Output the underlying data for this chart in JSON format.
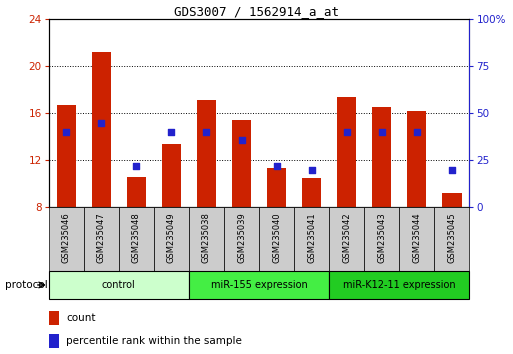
{
  "title": "GDS3007 / 1562914_a_at",
  "samples": [
    "GSM235046",
    "GSM235047",
    "GSM235048",
    "GSM235049",
    "GSM235038",
    "GSM235039",
    "GSM235040",
    "GSM235041",
    "GSM235042",
    "GSM235043",
    "GSM235044",
    "GSM235045"
  ],
  "count_values": [
    16.7,
    21.2,
    10.6,
    13.4,
    17.1,
    15.4,
    11.3,
    10.5,
    17.4,
    16.5,
    16.2,
    9.2
  ],
  "percentile_raw": [
    40,
    45,
    22,
    40,
    40,
    36,
    22,
    20,
    40,
    40,
    40,
    20
  ],
  "y_min": 8,
  "y_max": 24,
  "y_ticks": [
    8,
    12,
    16,
    20,
    24
  ],
  "y2_ticks": [
    0,
    25,
    50,
    75,
    100
  ],
  "bar_color": "#cc2200",
  "dot_color": "#2222cc",
  "groups": [
    {
      "label": "control",
      "start": 0,
      "end": 4,
      "color": "#ccffcc"
    },
    {
      "label": "miR-155 expression",
      "start": 4,
      "end": 8,
      "color": "#44ee44"
    },
    {
      "label": "miR-K12-11 expression",
      "start": 8,
      "end": 12,
      "color": "#22cc22"
    }
  ],
  "protocol_label": "protocol",
  "legend_count_label": "count",
  "legend_percentile_label": "percentile rank within the sample",
  "background_color": "#ffffff",
  "tick_label_color_left": "#cc2200",
  "tick_label_color_right": "#2222cc",
  "bar_width": 0.55
}
